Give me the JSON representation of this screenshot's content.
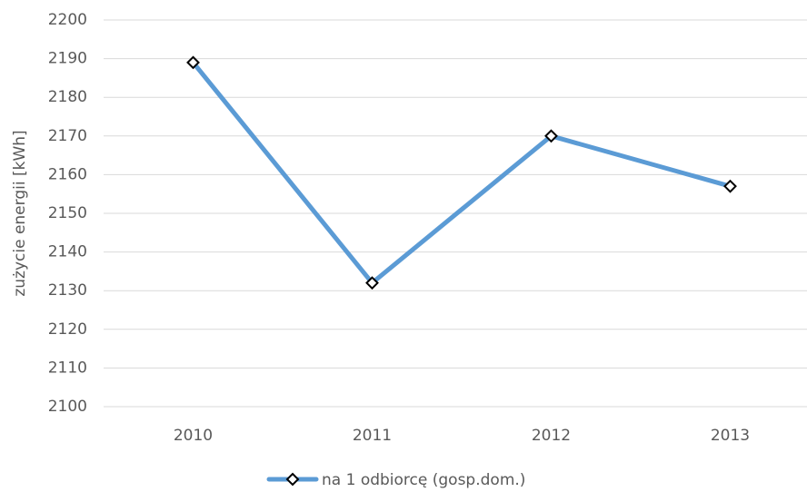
{
  "chart_data": {
    "type": "line",
    "y_label": "zużycie energii [kWh]",
    "categories": [
      "2010",
      "2011",
      "2012",
      "2013"
    ],
    "series": [
      {
        "name": "na 1 odbiorcę (gosp.dom.)",
        "color": "#5b9bd5",
        "values": [
          2189,
          2132,
          2170,
          2157
        ]
      }
    ],
    "ylim": [
      2100,
      2200
    ],
    "yticks": [
      2100,
      2110,
      2120,
      2130,
      2140,
      2150,
      2160,
      2170,
      2180,
      2190,
      2200
    ],
    "grid": true,
    "legend": "bottom"
  }
}
